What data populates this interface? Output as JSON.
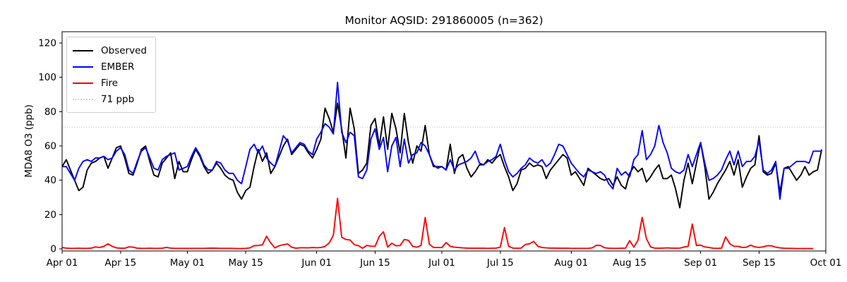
{
  "title": "Monitor AQSID: 291860005 (n=362)",
  "legend": [
    "Observed",
    "EMBER",
    "Fire",
    "71 ppb"
  ],
  "chart_data": {
    "type": "line",
    "title": "Monitor AQSID: 291860005 (n=362)",
    "xlabel": "",
    "ylabel": "MDA8 O3 (ppb)",
    "grid": false,
    "legend_position": "upper left",
    "legend": [
      "Observed",
      "EMBER",
      "Fire",
      "71 ppb"
    ],
    "x_unit": "day (daily values, day 0 = Apr 01, day 182 = Sep 30)",
    "xlim_days": [
      0,
      183
    ],
    "ylim": [
      -1.2,
      126.6
    ],
    "y_ticks": [
      0,
      20,
      40,
      60,
      80,
      100,
      120
    ],
    "x_ticks": [
      {
        "label": "Apr 01",
        "day": 0
      },
      {
        "label": "Apr 15",
        "day": 14
      },
      {
        "label": "May 01",
        "day": 30
      },
      {
        "label": "May 15",
        "day": 44
      },
      {
        "label": "Jun 01",
        "day": 61
      },
      {
        "label": "Jun 15",
        "day": 75
      },
      {
        "label": "Jul 01",
        "day": 91
      },
      {
        "label": "Jul 15",
        "day": 105
      },
      {
        "label": "Aug 01",
        "day": 122
      },
      {
        "label": "Aug 15",
        "day": 136
      },
      {
        "label": "Sep 01",
        "day": 153
      },
      {
        "label": "Sep 15",
        "day": 167
      },
      {
        "label": "Oct 01",
        "day": 183
      }
    ],
    "threshold": {
      "label": "71 ppb",
      "value": 71,
      "color": "#d3d3d3",
      "style": "dotted"
    },
    "series": [
      {
        "name": "Observed",
        "color": "#000000",
        "style": "solid",
        "start_day": 0,
        "values": [
          48,
          52,
          46,
          40,
          34,
          36,
          46,
          50,
          51,
          53,
          54,
          47,
          53,
          59,
          60,
          53,
          44,
          43,
          50,
          58,
          60,
          51,
          43,
          42,
          50,
          53,
          56,
          41,
          51,
          45,
          45,
          52,
          58,
          54,
          48,
          44,
          46,
          50,
          47,
          43,
          41,
          40,
          33,
          29,
          34,
          36,
          48,
          58,
          51,
          56,
          44,
          48,
          54,
          60,
          64,
          55,
          58,
          61,
          60,
          56,
          53,
          58,
          64,
          82,
          76,
          68,
          85,
          70,
          53,
          82,
          70,
          44,
          46,
          50,
          72,
          76,
          60,
          77,
          58,
          79,
          70,
          56,
          79,
          62,
          50,
          60,
          57,
          72,
          55,
          48,
          48,
          48,
          46,
          61,
          44,
          53,
          55,
          47,
          42,
          45,
          49,
          49,
          52,
          50,
          53,
          55,
          48,
          42,
          34,
          38,
          46,
          47,
          50,
          48,
          49,
          48,
          41,
          46,
          49,
          52,
          55,
          53,
          43,
          45,
          41,
          37,
          47,
          45,
          43,
          41,
          40,
          41,
          37,
          42,
          37,
          35,
          44,
          48,
          45,
          47,
          39,
          42,
          46,
          49,
          41,
          41,
          43,
          35,
          24,
          40,
          50,
          38,
          50,
          62,
          48,
          29,
          33,
          38,
          42,
          46,
          51,
          43,
          52,
          36,
          42,
          47,
          49,
          66,
          45,
          43,
          44,
          50,
          33,
          47,
          48,
          44,
          40,
          43,
          48,
          43,
          45,
          46,
          58
        ]
      },
      {
        "name": "EMBER",
        "color": "#0000ff",
        "style": "solid",
        "start_day": 0,
        "values": [
          48,
          48,
          44,
          40,
          47,
          51,
          52,
          51,
          53,
          53,
          54,
          52,
          53,
          57,
          59,
          55,
          46,
          44,
          51,
          57,
          59,
          53,
          47,
          46,
          52,
          54,
          55,
          56,
          46,
          47,
          48,
          54,
          59,
          55,
          49,
          46,
          46,
          51,
          50,
          46,
          44,
          44,
          40,
          38,
          48,
          58,
          61,
          56,
          60,
          53,
          50,
          48,
          57,
          66,
          63,
          56,
          59,
          62,
          61,
          57,
          55,
          64,
          68,
          73,
          71,
          67,
          97,
          68,
          62,
          68,
          66,
          42,
          41,
          46,
          64,
          70,
          58,
          65,
          45,
          60,
          65,
          48,
          64,
          50,
          55,
          56,
          62,
          60,
          55,
          49,
          47,
          48,
          46,
          52,
          46,
          49,
          50,
          51,
          53,
          57,
          50,
          49,
          51,
          52,
          54,
          61,
          52,
          45,
          42,
          44,
          47,
          49,
          53,
          51,
          50,
          52,
          48,
          50,
          55,
          61,
          60,
          55,
          50,
          47,
          44,
          42,
          46,
          45,
          44,
          45,
          43,
          38,
          35,
          47,
          43,
          45,
          42,
          52,
          55,
          69,
          52,
          55,
          60,
          72,
          62,
          56,
          47,
          45,
          44,
          46,
          55,
          48,
          55,
          62,
          50,
          40,
          41,
          43,
          46,
          52,
          57,
          49,
          57,
          48,
          51,
          51,
          54,
          63,
          46,
          44,
          46,
          51,
          29,
          47,
          47,
          49,
          51,
          51,
          51,
          50,
          57,
          57,
          57
        ]
      },
      {
        "name": "Fire",
        "color": "#ff0000",
        "style": "solid",
        "start_day": 0,
        "values": [
          0.8,
          0.5,
          0.3,
          0.3,
          0.4,
          0.3,
          0.3,
          0.5,
          1.2,
          0.8,
          1.5,
          2.9,
          1.5,
          0.6,
          0.4,
          0.4,
          1.2,
          1.0,
          0.4,
          0.3,
          0.3,
          0.4,
          0.3,
          0.3,
          0.4,
          0.9,
          0.5,
          0.3,
          0.3,
          0.3,
          0.3,
          0.3,
          0.3,
          0.3,
          0.3,
          0.4,
          0.5,
          0.4,
          0.3,
          0.3,
          0.3,
          0.3,
          0.2,
          0.2,
          0.3,
          0.6,
          1.9,
          2.0,
          2.4,
          7.4,
          3.5,
          0.6,
          1.9,
          2.4,
          2.9,
          1.0,
          0.4,
          0.7,
          0.7,
          0.6,
          0.8,
          0.7,
          0.8,
          1.5,
          3.4,
          8.0,
          29.5,
          6.8,
          5.5,
          5.2,
          2.5,
          1.9,
          0.4,
          2.0,
          1.6,
          1.5,
          7.3,
          10.0,
          1.1,
          3.3,
          1.8,
          2.0,
          5.5,
          5.0,
          1.5,
          1.0,
          2.0,
          18.3,
          2.7,
          0.8,
          0.8,
          0.8,
          3.7,
          1.5,
          1.0,
          0.8,
          0.6,
          0.5,
          0.4,
          0.4,
          0.4,
          0.4,
          0.3,
          0.4,
          0.5,
          1.0,
          12.5,
          1.5,
          0.5,
          0.4,
          0.5,
          2.6,
          3.0,
          4.4,
          1.5,
          0.8,
          0.6,
          0.5,
          0.5,
          0.4,
          0.4,
          0.4,
          0.3,
          0.3,
          0.3,
          0.3,
          0.3,
          0.6,
          2.1,
          2.0,
          0.7,
          0.4,
          0.3,
          0.3,
          0.4,
          0.5,
          4.9,
          1.0,
          5.1,
          18.4,
          6.0,
          1.2,
          0.5,
          0.4,
          0.5,
          0.6,
          0.5,
          0.4,
          0.5,
          1.1,
          1.5,
          14.5,
          2.0,
          2.2,
          1.2,
          0.8,
          0.4,
          0.3,
          0.5,
          7.0,
          3.0,
          1.5,
          1.5,
          0.8,
          1.0,
          2.2,
          1.2,
          0.9,
          1.2,
          1.9,
          1.8,
          1.0,
          0.6,
          0.4,
          0.3,
          0.3,
          0.2,
          0.2,
          0.2,
          0.2,
          0.2
        ]
      }
    ]
  }
}
